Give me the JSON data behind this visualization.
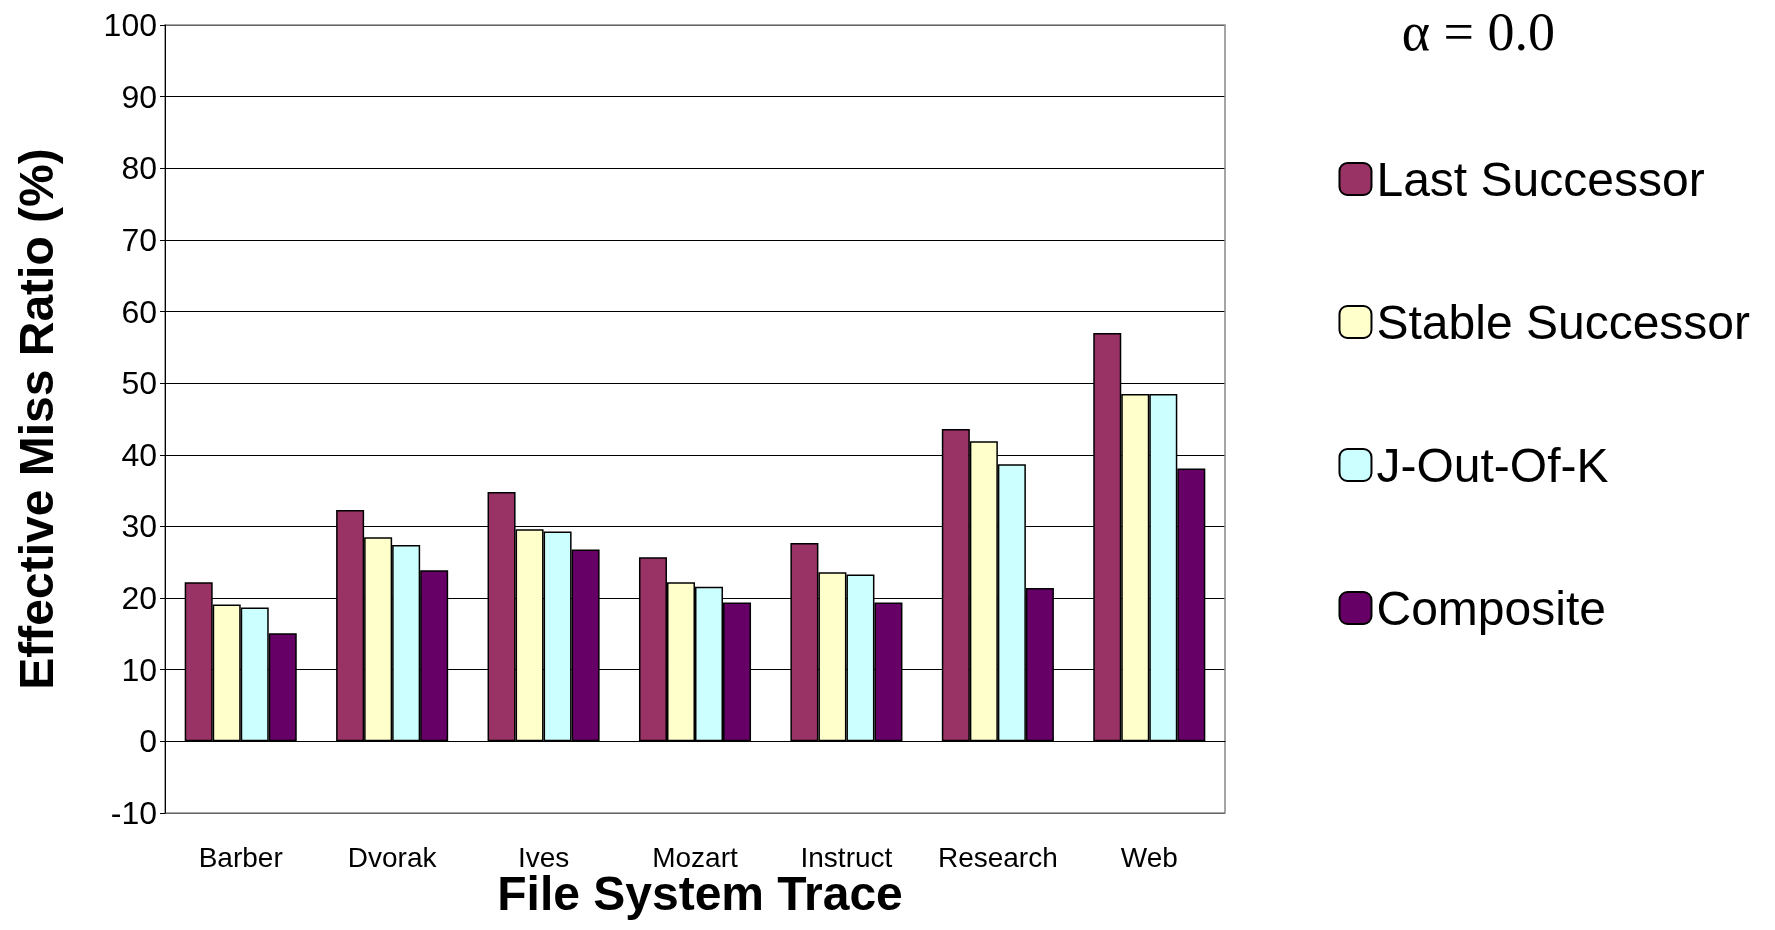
{
  "chart_data": {
    "type": "bar",
    "title": "α = 0.0",
    "xlabel": "File System Trace",
    "ylabel": "Effective Miss Ratio (%)",
    "categories": [
      "Barber",
      "Dvorak",
      "Ives",
      "Mozart",
      "Instruct",
      "Research",
      "Web"
    ],
    "series": [
      {
        "name": "Last Successor",
        "color": "#993366",
        "values": [
          22.2,
          32.3,
          34.8,
          25.7,
          27.7,
          43.6,
          57
        ]
      },
      {
        "name": "Stable Successor",
        "color": "#ffffcc",
        "values": [
          19.1,
          28.5,
          29.6,
          22.2,
          23.6,
          41.9,
          48.5
        ]
      },
      {
        "name": "J-Out-Of-K",
        "color": "#ccffff",
        "values": [
          18.7,
          27.4,
          29.3,
          21.6,
          23.3,
          38.7,
          48.5
        ]
      },
      {
        "name": "Composite",
        "color": "#660066",
        "values": [
          15.1,
          23.9,
          26.8,
          19.4,
          19.4,
          21.4,
          38.1
        ]
      }
    ],
    "ylim": [
      -10,
      100
    ],
    "yticks": [
      -10,
      0,
      10,
      20,
      30,
      40,
      50,
      60,
      70,
      80,
      90,
      100
    ],
    "grid": "y",
    "legend": "right"
  }
}
